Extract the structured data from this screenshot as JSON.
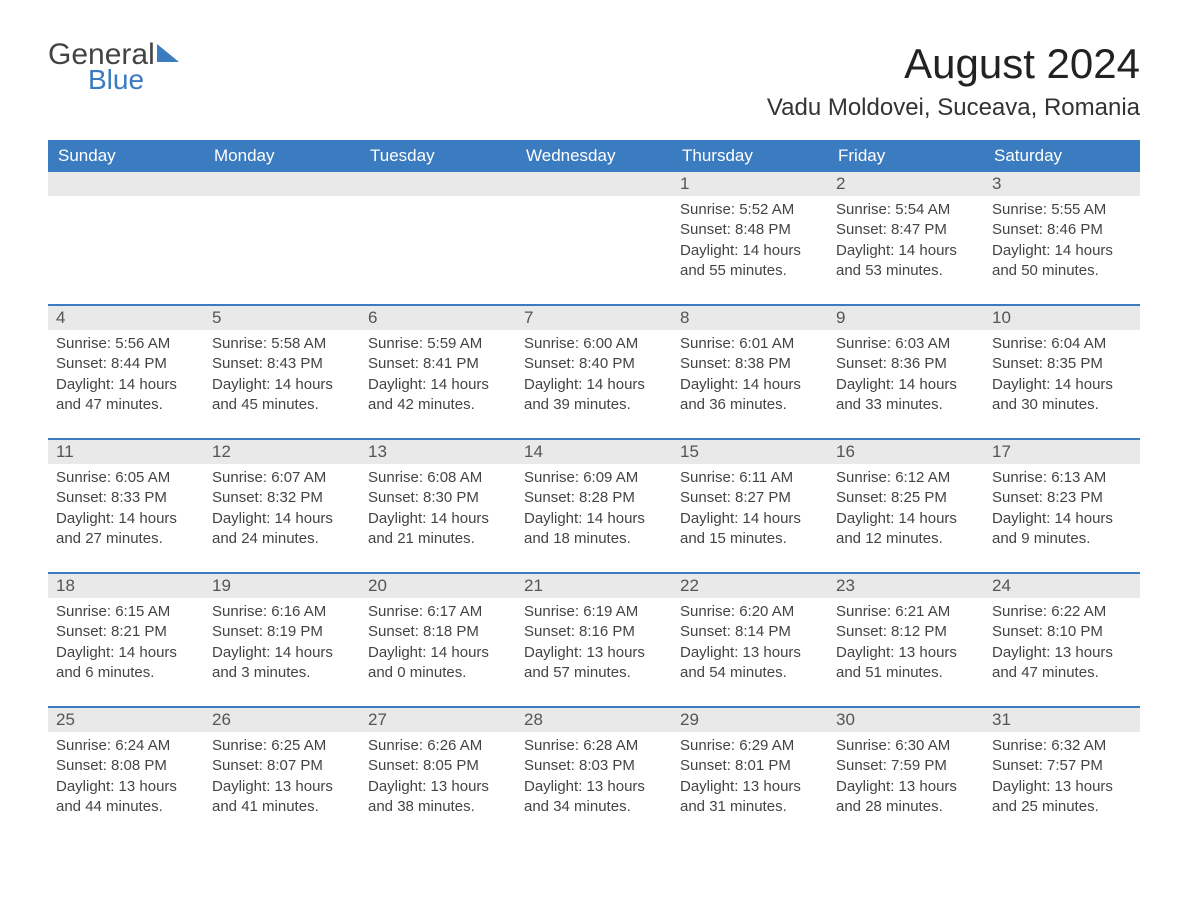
{
  "logo": {
    "word1": "General",
    "word2": "Blue"
  },
  "title": "August 2024",
  "location": "Vadu Moldovei, Suceava, Romania",
  "colors": {
    "header_bg": "#3b7bbf",
    "header_text": "#ffffff",
    "daynum_bg": "#e9e9e9",
    "daynum_text": "#555555",
    "body_text": "#444444",
    "rule": "#3b7bbf",
    "page_bg": "#ffffff"
  },
  "font": {
    "family": "Arial",
    "title_size_pt": 32,
    "location_size_pt": 18,
    "weekday_size_pt": 13,
    "body_size_pt": 11
  },
  "weekdays": [
    "Sunday",
    "Monday",
    "Tuesday",
    "Wednesday",
    "Thursday",
    "Friday",
    "Saturday"
  ],
  "weeks": [
    [
      null,
      null,
      null,
      null,
      {
        "n": "1",
        "sunrise": "5:52 AM",
        "sunset": "8:48 PM",
        "day_h": "14",
        "day_m": "55"
      },
      {
        "n": "2",
        "sunrise": "5:54 AM",
        "sunset": "8:47 PM",
        "day_h": "14",
        "day_m": "53"
      },
      {
        "n": "3",
        "sunrise": "5:55 AM",
        "sunset": "8:46 PM",
        "day_h": "14",
        "day_m": "50"
      }
    ],
    [
      {
        "n": "4",
        "sunrise": "5:56 AM",
        "sunset": "8:44 PM",
        "day_h": "14",
        "day_m": "47"
      },
      {
        "n": "5",
        "sunrise": "5:58 AM",
        "sunset": "8:43 PM",
        "day_h": "14",
        "day_m": "45"
      },
      {
        "n": "6",
        "sunrise": "5:59 AM",
        "sunset": "8:41 PM",
        "day_h": "14",
        "day_m": "42"
      },
      {
        "n": "7",
        "sunrise": "6:00 AM",
        "sunset": "8:40 PM",
        "day_h": "14",
        "day_m": "39"
      },
      {
        "n": "8",
        "sunrise": "6:01 AM",
        "sunset": "8:38 PM",
        "day_h": "14",
        "day_m": "36"
      },
      {
        "n": "9",
        "sunrise": "6:03 AM",
        "sunset": "8:36 PM",
        "day_h": "14",
        "day_m": "33"
      },
      {
        "n": "10",
        "sunrise": "6:04 AM",
        "sunset": "8:35 PM",
        "day_h": "14",
        "day_m": "30"
      }
    ],
    [
      {
        "n": "11",
        "sunrise": "6:05 AM",
        "sunset": "8:33 PM",
        "day_h": "14",
        "day_m": "27"
      },
      {
        "n": "12",
        "sunrise": "6:07 AM",
        "sunset": "8:32 PM",
        "day_h": "14",
        "day_m": "24"
      },
      {
        "n": "13",
        "sunrise": "6:08 AM",
        "sunset": "8:30 PM",
        "day_h": "14",
        "day_m": "21"
      },
      {
        "n": "14",
        "sunrise": "6:09 AM",
        "sunset": "8:28 PM",
        "day_h": "14",
        "day_m": "18"
      },
      {
        "n": "15",
        "sunrise": "6:11 AM",
        "sunset": "8:27 PM",
        "day_h": "14",
        "day_m": "15"
      },
      {
        "n": "16",
        "sunrise": "6:12 AM",
        "sunset": "8:25 PM",
        "day_h": "14",
        "day_m": "12"
      },
      {
        "n": "17",
        "sunrise": "6:13 AM",
        "sunset": "8:23 PM",
        "day_h": "14",
        "day_m": "9"
      }
    ],
    [
      {
        "n": "18",
        "sunrise": "6:15 AM",
        "sunset": "8:21 PM",
        "day_h": "14",
        "day_m": "6"
      },
      {
        "n": "19",
        "sunrise": "6:16 AM",
        "sunset": "8:19 PM",
        "day_h": "14",
        "day_m": "3"
      },
      {
        "n": "20",
        "sunrise": "6:17 AM",
        "sunset": "8:18 PM",
        "day_h": "14",
        "day_m": "0"
      },
      {
        "n": "21",
        "sunrise": "6:19 AM",
        "sunset": "8:16 PM",
        "day_h": "13",
        "day_m": "57"
      },
      {
        "n": "22",
        "sunrise": "6:20 AM",
        "sunset": "8:14 PM",
        "day_h": "13",
        "day_m": "54"
      },
      {
        "n": "23",
        "sunrise": "6:21 AM",
        "sunset": "8:12 PM",
        "day_h": "13",
        "day_m": "51"
      },
      {
        "n": "24",
        "sunrise": "6:22 AM",
        "sunset": "8:10 PM",
        "day_h": "13",
        "day_m": "47"
      }
    ],
    [
      {
        "n": "25",
        "sunrise": "6:24 AM",
        "sunset": "8:08 PM",
        "day_h": "13",
        "day_m": "44"
      },
      {
        "n": "26",
        "sunrise": "6:25 AM",
        "sunset": "8:07 PM",
        "day_h": "13",
        "day_m": "41"
      },
      {
        "n": "27",
        "sunrise": "6:26 AM",
        "sunset": "8:05 PM",
        "day_h": "13",
        "day_m": "38"
      },
      {
        "n": "28",
        "sunrise": "6:28 AM",
        "sunset": "8:03 PM",
        "day_h": "13",
        "day_m": "34"
      },
      {
        "n": "29",
        "sunrise": "6:29 AM",
        "sunset": "8:01 PM",
        "day_h": "13",
        "day_m": "31"
      },
      {
        "n": "30",
        "sunrise": "6:30 AM",
        "sunset": "7:59 PM",
        "day_h": "13",
        "day_m": "28"
      },
      {
        "n": "31",
        "sunrise": "6:32 AM",
        "sunset": "7:57 PM",
        "day_h": "13",
        "day_m": "25"
      }
    ]
  ],
  "labels": {
    "sunrise_prefix": "Sunrise: ",
    "sunset_prefix": "Sunset: ",
    "daylight_prefix": "Daylight: ",
    "hours_word": " hours",
    "and_word": "and ",
    "minutes_word": " minutes."
  }
}
